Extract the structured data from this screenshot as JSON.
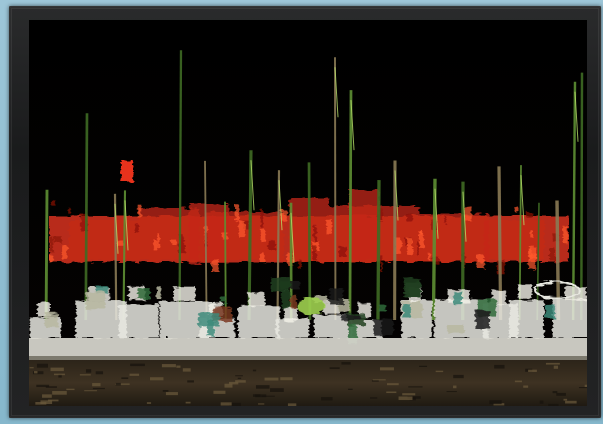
{
  "image": {
    "subject": "marina",
    "colors": {
      "background": "#8fbdd1",
      "frame": "#1e1f20",
      "sky": "#000000",
      "reflection_red": "#d8321c",
      "mast_green": "#4c7a2a",
      "hull_white": "#e8e8e0",
      "water": "#3d2f22"
    }
  }
}
